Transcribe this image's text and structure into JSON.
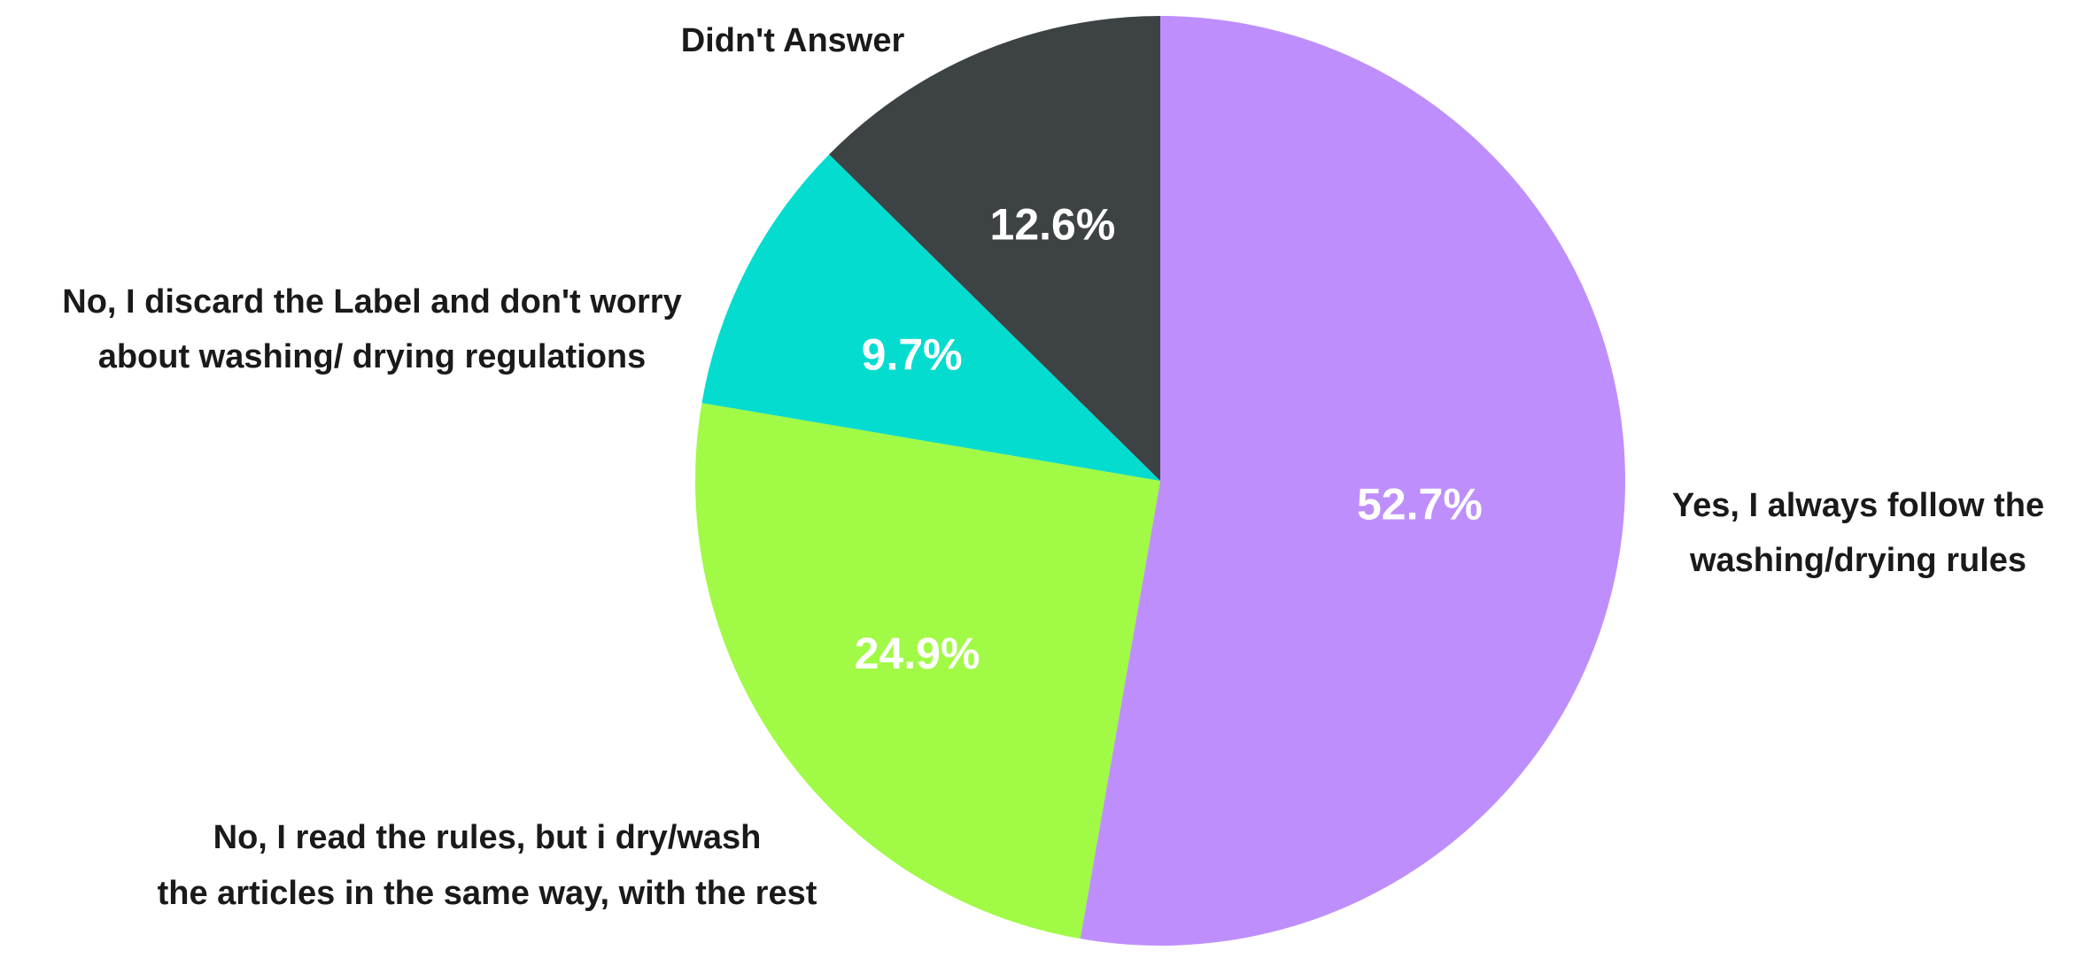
{
  "chart_data": {
    "type": "pie",
    "slices": [
      {
        "name": "Yes, I always follow the washing/drying rules",
        "label_lines": [
          "Yes, I always follow the",
          "washing/drying rules"
        ],
        "value": 52.7,
        "value_label": "52.7%",
        "color": "#be8ffc"
      },
      {
        "name": "No, I read the rules, but i dry/wash the articles in the same way, with the rest",
        "label_lines": [
          "No, I read the rules, but i dry/wash",
          "the articles in the same way, with the rest"
        ],
        "value": 24.9,
        "value_label": "24.9%",
        "color": "#a1fa45"
      },
      {
        "name": "No, I discard the Label and don't worry about washing/ drying regulations",
        "label_lines": [
          "No, I discard the Label and don't worry",
          "about washing/ drying regulations"
        ],
        "value": 9.7,
        "value_label": "9.7%",
        "color": "#03dccf"
      },
      {
        "name": "Didn't Answer",
        "label_lines": [
          "Didn't Answer"
        ],
        "value": 12.6,
        "value_label": "12.6%",
        "color": "#3d4345"
      }
    ],
    "start_direction": "top",
    "direction": "clockwise"
  }
}
